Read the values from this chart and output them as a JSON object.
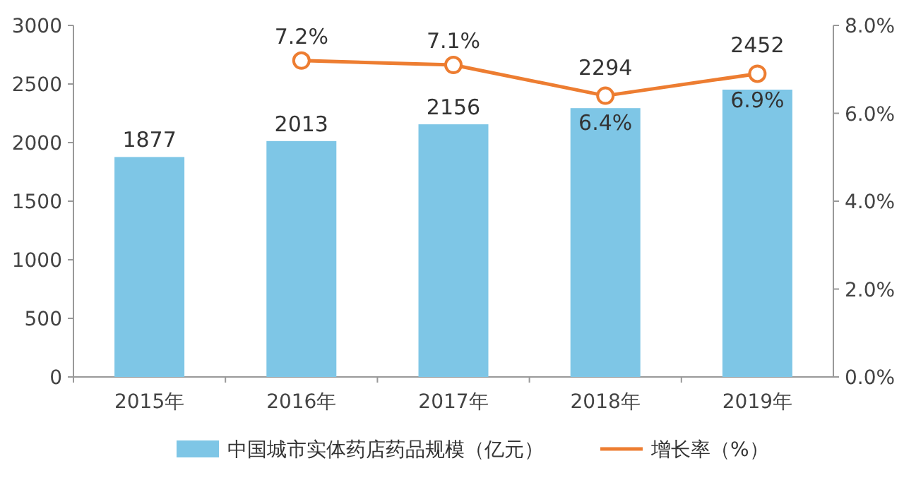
{
  "chart_data": {
    "type": "bar",
    "categories": [
      "2015年",
      "2016年",
      "2017年",
      "2018年",
      "2019年"
    ],
    "series": [
      {
        "name": "中国城市实体药店药品规模（亿元）",
        "color": "#7ec6e6",
        "values": [
          1877,
          2013,
          2156,
          2294,
          2452
        ],
        "value_labels": [
          "1877",
          "2013",
          "2156",
          "2294",
          "2452"
        ]
      },
      {
        "name": "增长率（%）",
        "type": "line",
        "axis": "y2",
        "color": "#ed7d31",
        "marker": "circle",
        "values": [
          null,
          7.2,
          7.1,
          6.4,
          6.9
        ],
        "value_labels": [
          null,
          "7.2%",
          "7.1%",
          "6.4%",
          "6.9%"
        ]
      }
    ],
    "ylim": [
      0,
      3000
    ],
    "yticks": [
      0,
      500,
      1000,
      1500,
      2000,
      2500,
      3000
    ],
    "y2lim": [
      0,
      8
    ],
    "y2ticks": [
      {
        "value": 0,
        "label": "0.0%"
      },
      {
        "value": 2,
        "label": "2.0%"
      },
      {
        "value": 4,
        "label": "4.0%"
      },
      {
        "value": 6,
        "label": "6.0%"
      },
      {
        "value": 8,
        "label": "8.0%"
      }
    ],
    "grid": false,
    "legend": "bottom"
  }
}
